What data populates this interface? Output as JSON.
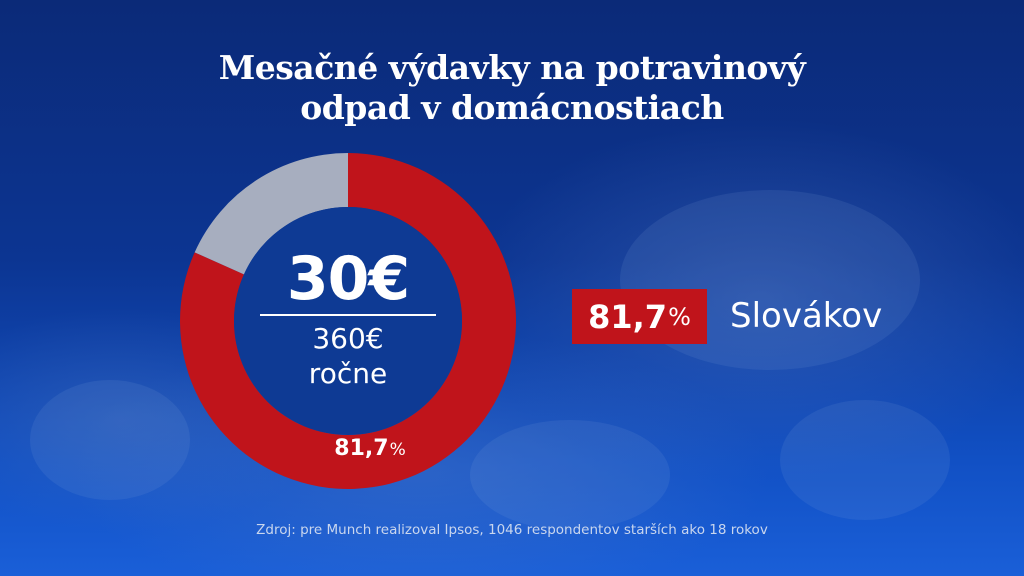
{
  "title_lines": [
    "Mesačné výdavky na potravinový",
    "odpad v domácnostiach"
  ],
  "center": {
    "main_value": "30€",
    "sub_value": "360€",
    "sub_label": "ročne"
  },
  "donut_label": {
    "value": "81,7",
    "unit": "%"
  },
  "badge": {
    "value": "81,7",
    "unit": "%"
  },
  "group_label": "Slovákov",
  "source": "Zdroj: pre Munch realizoval Ipsos, 1046 respondentov starších ako 18 rokov",
  "colors": {
    "primary": "#c0141b",
    "remainder": "#a7aebf",
    "background": "#0c3592"
  },
  "chart_data": {
    "type": "pie",
    "style": "donut",
    "slices": [
      {
        "value": 81.7,
        "color": "#c0141b"
      },
      {
        "value": 18.3,
        "color": "#a7aebf"
      }
    ],
    "start": "top",
    "direction": "clockwise",
    "data_labels": [
      "81,7%"
    ],
    "center_text": [
      "30€",
      "360€",
      "ročne"
    ]
  }
}
